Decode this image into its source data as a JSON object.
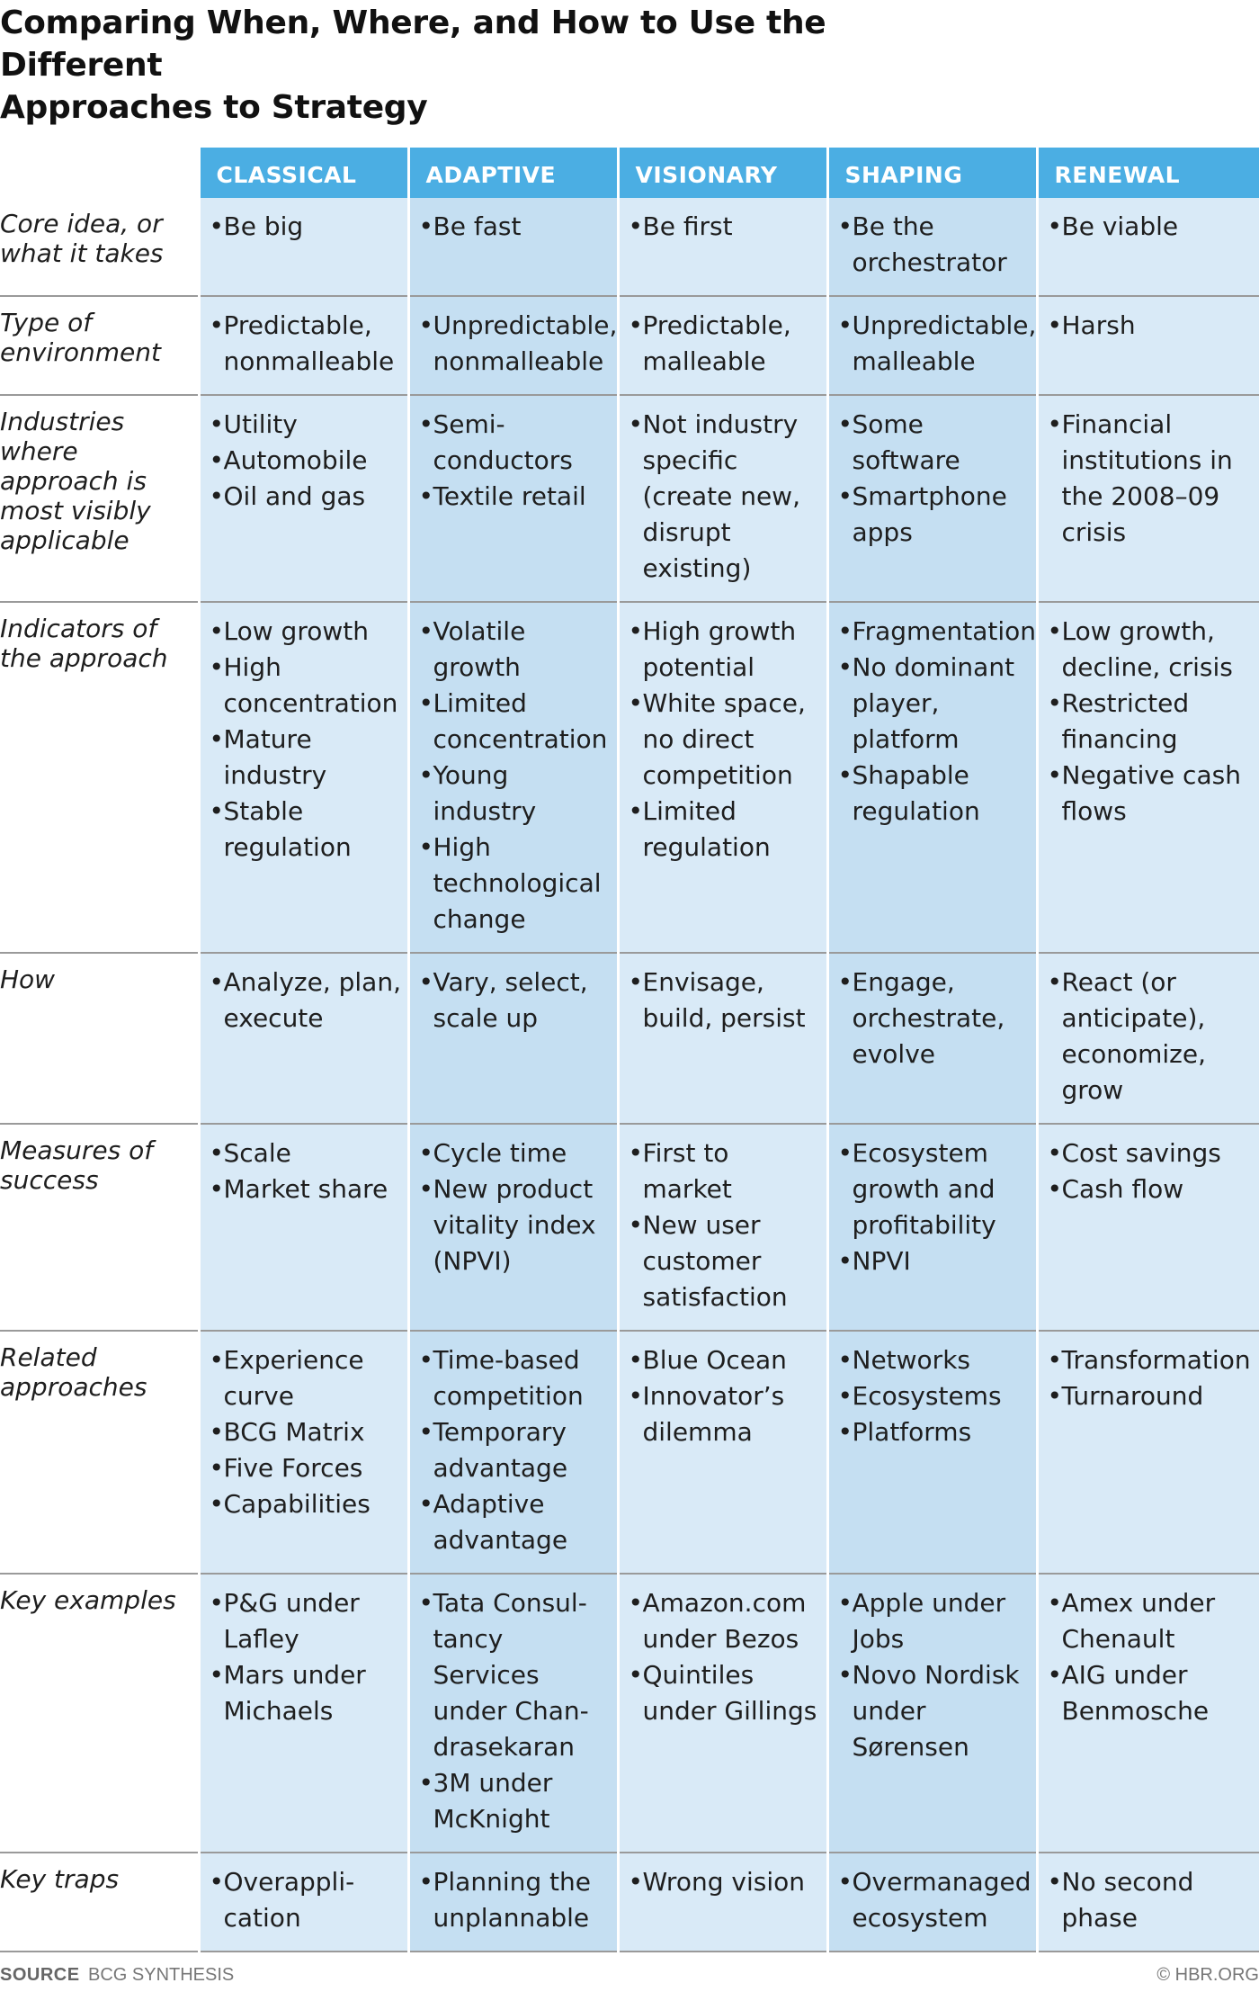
{
  "title": {
    "line1": "Comparing When, Where, and How to Use the Different",
    "line2": "Approaches to Strategy"
  },
  "colors": {
    "header": "#4baee3",
    "cell_light": "#d9eaf7",
    "cell_dark": "#c5dff2"
  },
  "columns": [
    "CLASSICAL",
    "ADAPTIVE",
    "VISIONARY",
    "SHAPING",
    "RENEWAL"
  ],
  "rows": [
    {
      "label": "Core idea, or what it takes",
      "cells": [
        [
          "Be big"
        ],
        [
          "Be fast"
        ],
        [
          "Be first"
        ],
        [
          "Be the orchestrator"
        ],
        [
          "Be viable"
        ]
      ]
    },
    {
      "label": "Type of environment",
      "cells": [
        [
          "Predictable, nonmalleable"
        ],
        [
          "Unpredictable, nonmalleable"
        ],
        [
          "Predictable, malleable"
        ],
        [
          "Unpredictable, malleable"
        ],
        [
          "Harsh"
        ]
      ]
    },
    {
      "label": "Industries where approach is most visibly applicable",
      "cells": [
        [
          "Utility",
          "Automobile",
          "Oil and gas"
        ],
        [
          "Semi-conductors",
          "Textile retail"
        ],
        [
          "Not industry specific (create new, disrupt existing)"
        ],
        [
          "Some software",
          "Smartphone apps"
        ],
        [
          "Financial institutions in the 2008–09 crisis"
        ]
      ]
    },
    {
      "label": "Indicators of the approach",
      "cells": [
        [
          "Low growth",
          "High concentration",
          "Mature industry",
          "Stable regulation"
        ],
        [
          "Volatile growth",
          "Limited concentration",
          "Young industry",
          "High technological change"
        ],
        [
          "High growth potential",
          "White space, no direct competition",
          "Limited regulation"
        ],
        [
          "Fragmentation",
          "No dominant player, platform",
          "Shapable regulation"
        ],
        [
          "Low growth, decline, crisis",
          "Restricted financing",
          "Negative cash flows"
        ]
      ]
    },
    {
      "label": "How",
      "cells": [
        [
          "Analyze, plan, execute"
        ],
        [
          "Vary, select, scale up"
        ],
        [
          "Envisage, build, persist"
        ],
        [
          "Engage, orchestrate, evolve"
        ],
        [
          "React (or anticipate), economize, grow"
        ]
      ]
    },
    {
      "label": "Measures of success",
      "cells": [
        [
          "Scale",
          "Market share"
        ],
        [
          "Cycle time",
          "New product vitality index (NPVI)"
        ],
        [
          "First to market",
          "New user customer satisfaction"
        ],
        [
          "Ecosystem growth and profitability",
          "NPVI"
        ],
        [
          "Cost savings",
          "Cash flow"
        ]
      ]
    },
    {
      "label": "Related approaches",
      "cells": [
        [
          "Experience curve",
          "BCG Matrix",
          "Five Forces",
          "Capabilities"
        ],
        [
          "Time-based competition",
          "Temporary advantage",
          "Adaptive advantage"
        ],
        [
          "Blue Ocean",
          "Innovator’s dilemma"
        ],
        [
          "Networks",
          "Ecosystems",
          "Platforms"
        ],
        [
          "Transformation",
          "Turnaround"
        ]
      ]
    },
    {
      "label": "Key examples",
      "cells": [
        [
          "P&G under Lafley",
          "Mars under Michaels"
        ],
        [
          "Tata Consul-tancy Services under Chan-drasekaran",
          "3M under McKnight"
        ],
        [
          "Amazon.com under Bezos",
          "Quintiles under Gillings"
        ],
        [
          "Apple under Jobs",
          "Novo Nordisk under Sørensen"
        ],
        [
          "Amex under Chenault",
          "AIG under Benmosche"
        ]
      ]
    },
    {
      "label": "Key traps",
      "cells": [
        [
          "Overappli-cation"
        ],
        [
          "Planning the unplannable"
        ],
        [
          "Wrong vision"
        ],
        [
          "Overmanaged ecosystem"
        ],
        [
          "No second phase"
        ]
      ]
    }
  ],
  "footer": {
    "source_label": "SOURCE",
    "source_text": "BCG SYNTHESIS",
    "credit": "© HBR.ORG"
  }
}
